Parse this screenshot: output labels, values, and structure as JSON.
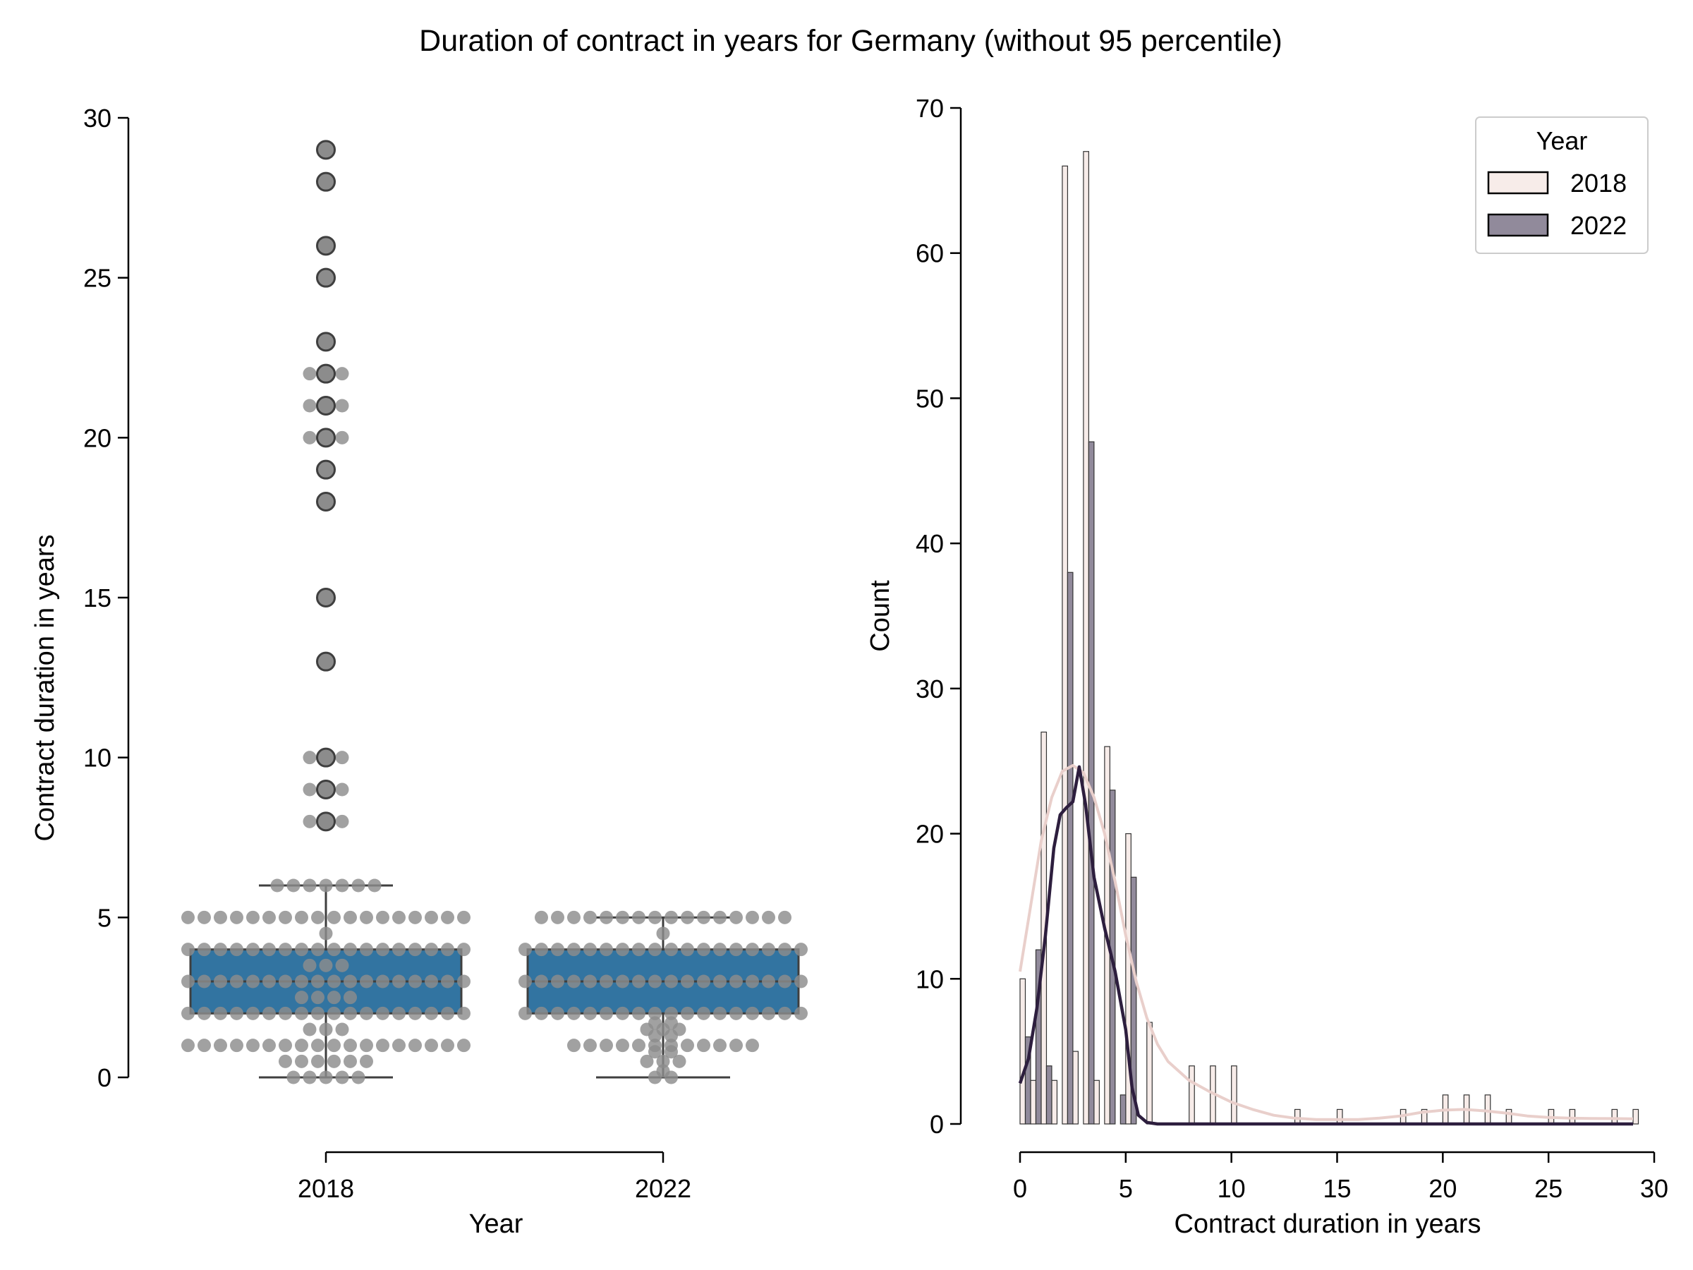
{
  "figure": {
    "title": "Duration of contract in years for Germany (without 95 percentile)"
  },
  "colors": {
    "box_fill": "#3274a1",
    "box_edge": "#3f3f3f",
    "swarm_point": "#8c8c8c",
    "outlier_fill": "#8c8c8c",
    "hist_2018": "#f7ece9",
    "hist_2022": "#918a9b",
    "kde_2018": "#e9cfcb",
    "kde_2022": "#2d1e3e"
  },
  "chart_data": [
    {
      "type": "box",
      "xlabel": "Year",
      "ylabel": "Contract duration in years",
      "ylim": [
        0,
        30
      ],
      "yticks": [
        0,
        5,
        10,
        15,
        20,
        25,
        30
      ],
      "categories": [
        "2018",
        "2022"
      ],
      "boxes": [
        {
          "category": "2018",
          "whisker_low": 0,
          "q1": 2,
          "median": 3,
          "q3": 4,
          "whisker_high": 6,
          "outliers": [
            8,
            9,
            10,
            13,
            15,
            18,
            19,
            20,
            21,
            22,
            23,
            25,
            26,
            28,
            29
          ]
        },
        {
          "category": "2022",
          "whisker_low": 0,
          "q1": 2,
          "median": 3,
          "q3": 4,
          "whisker_high": 5,
          "outliers": []
        }
      ],
      "swarm": [
        {
          "category": "2018",
          "levels": [
            {
              "y": 0,
              "n": 5
            },
            {
              "y": 0.5,
              "n": 6
            },
            {
              "y": 1,
              "n": 18
            },
            {
              "y": 1.5,
              "n": 3
            },
            {
              "y": 2,
              "n": 18
            },
            {
              "y": 2.5,
              "n": 4
            },
            {
              "y": 3,
              "n": 18
            },
            {
              "y": 3.5,
              "n": 3
            },
            {
              "y": 4,
              "n": 18
            },
            {
              "y": 4.5,
              "n": 1
            },
            {
              "y": 5,
              "n": 18
            },
            {
              "y": 6,
              "n": 7
            },
            {
              "y": 8,
              "n": 3
            },
            {
              "y": 9,
              "n": 3
            },
            {
              "y": 10,
              "n": 3
            },
            {
              "y": 13,
              "n": 1
            },
            {
              "y": 15,
              "n": 1
            },
            {
              "y": 18,
              "n": 1
            },
            {
              "y": 19,
              "n": 1
            },
            {
              "y": 20,
              "n": 3
            },
            {
              "y": 21,
              "n": 3
            },
            {
              "y": 22,
              "n": 3
            },
            {
              "y": 23,
              "n": 1
            },
            {
              "y": 25,
              "n": 1
            },
            {
              "y": 26,
              "n": 1
            },
            {
              "y": 28,
              "n": 1
            },
            {
              "y": 29,
              "n": 1
            }
          ]
        },
        {
          "category": "2022",
          "levels": [
            {
              "y": 0,
              "n": 2
            },
            {
              "y": 0.2,
              "n": 1
            },
            {
              "y": 0.5,
              "n": 3
            },
            {
              "y": 0.8,
              "n": 2
            },
            {
              "y": 1,
              "n": 12
            },
            {
              "y": 1.3,
              "n": 2
            },
            {
              "y": 1.5,
              "n": 3
            },
            {
              "y": 1.7,
              "n": 2
            },
            {
              "y": 2,
              "n": 18
            },
            {
              "y": 3,
              "n": 18
            },
            {
              "y": 4,
              "n": 18
            },
            {
              "y": 4.5,
              "n": 1
            },
            {
              "y": 5,
              "n": 16
            }
          ]
        }
      ]
    },
    {
      "type": "histogram",
      "xlabel": "Contract duration in years",
      "ylabel": "Count",
      "xlim": [
        0,
        30
      ],
      "ylim": [
        0,
        70
      ],
      "xticks": [
        0,
        5,
        10,
        15,
        20,
        25,
        30
      ],
      "yticks": [
        0,
        10,
        20,
        30,
        40,
        50,
        60,
        70
      ],
      "legend": {
        "title": "Year",
        "position": "top-right"
      },
      "series": [
        {
          "name": "2018",
          "color": "#f7ece9",
          "bars": [
            {
              "x": 0.0,
              "count": 10
            },
            {
              "x": 0.5,
              "count": 3
            },
            {
              "x": 1.0,
              "count": 27
            },
            {
              "x": 1.5,
              "count": 3
            },
            {
              "x": 2.0,
              "count": 66
            },
            {
              "x": 2.5,
              "count": 5
            },
            {
              "x": 3.0,
              "count": 67
            },
            {
              "x": 3.5,
              "count": 3
            },
            {
              "x": 4.0,
              "count": 26
            },
            {
              "x": 5.0,
              "count": 20
            },
            {
              "x": 6.0,
              "count": 7
            },
            {
              "x": 8.0,
              "count": 4
            },
            {
              "x": 9.0,
              "count": 4
            },
            {
              "x": 10.0,
              "count": 4
            },
            {
              "x": 13.0,
              "count": 1
            },
            {
              "x": 15.0,
              "count": 1
            },
            {
              "x": 18.0,
              "count": 1
            },
            {
              "x": 19.0,
              "count": 1
            },
            {
              "x": 20.0,
              "count": 2
            },
            {
              "x": 21.0,
              "count": 2
            },
            {
              "x": 22.0,
              "count": 2
            },
            {
              "x": 23.0,
              "count": 1
            },
            {
              "x": 25.0,
              "count": 1
            },
            {
              "x": 26.0,
              "count": 1
            },
            {
              "x": 28.0,
              "count": 1
            },
            {
              "x": 29.0,
              "count": 1
            }
          ],
          "kde": [
            [
              0,
              10.5
            ],
            [
              0.5,
              15
            ],
            [
              1,
              19.5
            ],
            [
              1.5,
              22.5
            ],
            [
              2,
              24.3
            ],
            [
              2.5,
              24.7
            ],
            [
              3,
              24.2
            ],
            [
              3.5,
              22.5
            ],
            [
              4,
              20
            ],
            [
              4.5,
              16.7
            ],
            [
              5,
              13
            ],
            [
              5.5,
              9.8
            ],
            [
              6,
              7.3
            ],
            [
              6.5,
              5.5
            ],
            [
              7,
              4.3
            ],
            [
              8,
              3
            ],
            [
              9,
              2.2
            ],
            [
              10,
              1.5
            ],
            [
              11,
              1
            ],
            [
              12,
              0.6
            ],
            [
              13,
              0.4
            ],
            [
              14,
              0.3
            ],
            [
              15,
              0.3
            ],
            [
              16,
              0.3
            ],
            [
              17,
              0.4
            ],
            [
              18,
              0.55
            ],
            [
              19,
              0.8
            ],
            [
              20,
              0.95
            ],
            [
              21,
              1
            ],
            [
              22,
              0.9
            ],
            [
              23,
              0.75
            ],
            [
              24,
              0.55
            ],
            [
              25,
              0.45
            ],
            [
              26,
              0.4
            ],
            [
              27,
              0.38
            ],
            [
              28,
              0.37
            ],
            [
              29,
              0.35
            ]
          ]
        },
        {
          "name": "2022",
          "color": "#918a9b",
          "bars": [
            {
              "x": 0.0,
              "count": 6
            },
            {
              "x": 0.5,
              "count": 12
            },
            {
              "x": 1.0,
              "count": 4
            },
            {
              "x": 2.0,
              "count": 38
            },
            {
              "x": 3.0,
              "count": 47
            },
            {
              "x": 4.0,
              "count": 23
            },
            {
              "x": 4.5,
              "count": 2
            },
            {
              "x": 5.0,
              "count": 17
            }
          ],
          "kde": [
            [
              0,
              2.8
            ],
            [
              0.4,
              4.5
            ],
            [
              0.8,
              8
            ],
            [
              1.2,
              13
            ],
            [
              1.6,
              19
            ],
            [
              1.9,
              21.3
            ],
            [
              2.2,
              21.8
            ],
            [
              2.5,
              22.2
            ],
            [
              2.8,
              24.6
            ],
            [
              3.1,
              22
            ],
            [
              3.5,
              17
            ],
            [
              4,
              13.5
            ],
            [
              4.5,
              10.5
            ],
            [
              5,
              6.5
            ],
            [
              5.3,
              2.5
            ],
            [
              5.6,
              0.6
            ],
            [
              6,
              0.1
            ],
            [
              6.5,
              0
            ],
            [
              8,
              0
            ],
            [
              12,
              0
            ],
            [
              16,
              0
            ],
            [
              20,
              0
            ],
            [
              24,
              0
            ],
            [
              29,
              0
            ]
          ]
        }
      ]
    }
  ]
}
